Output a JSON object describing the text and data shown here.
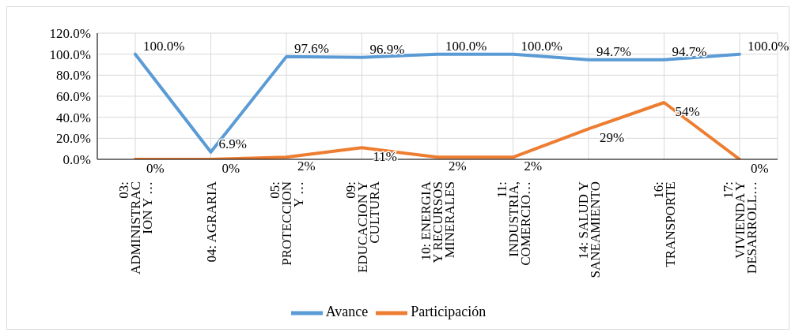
{
  "chart_data": {
    "type": "line",
    "categories": [
      "03: ADMINISTRACION Y …",
      "04: AGRARIA",
      "05: PROTECCION Y …",
      "09: EDUCACION Y CULTURA",
      "10: ENERGIA Y RECURSOS MINERALES",
      "11: INDUSTRIA, COMERCIO…",
      "14: SALUD Y SANEAMIENTO",
      "16: TRANSPORTE",
      "17: VIVIENDA Y DESARROLL…"
    ],
    "series": [
      {
        "name": "Avance",
        "color": "#5b9bd5",
        "values": [
          100,
          6.9,
          97.6,
          96.9,
          100,
          100,
          94.7,
          94.7,
          100
        ],
        "value_labels": [
          "100.0%",
          "6.9%",
          "97.6%",
          "96.9%",
          "100.0%",
          "100.0%",
          "94.7%",
          "94.7%",
          "100.0%"
        ]
      },
      {
        "name": "Participación",
        "color": "#ed7d31",
        "values": [
          0,
          0,
          2,
          11,
          2,
          2,
          29,
          54,
          0
        ],
        "value_labels": [
          "0%",
          "0%",
          "2%",
          "11%",
          "2%",
          "2%",
          "29%",
          "54%",
          "0%"
        ]
      }
    ],
    "ylim": [
      0,
      120
    ],
    "yticks": [
      {
        "value": 0,
        "label": "0.0%"
      },
      {
        "value": 20,
        "label": "20.0%"
      },
      {
        "value": 40,
        "label": "40.0%"
      },
      {
        "value": 60,
        "label": "60.0%"
      },
      {
        "value": 80,
        "label": "80.0%"
      },
      {
        "value": 100,
        "label": "100.0%"
      },
      {
        "value": 120,
        "label": "120.0%"
      }
    ],
    "grid": true,
    "legend": "bottom",
    "marker": "none",
    "line_style": "solid"
  }
}
